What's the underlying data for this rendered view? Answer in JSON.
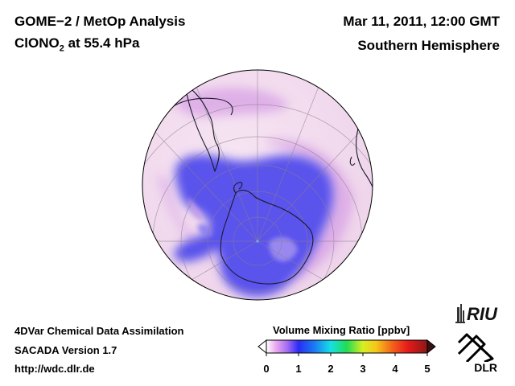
{
  "header": {
    "title_line1": "GOME−2 / MetOp Analysis",
    "species_main": "ClONO",
    "species_sub": "2",
    "species_rest": " at 55.4 hPa",
    "datetime": "Mar 11, 2011, 12:00 GMT",
    "region": "Southern Hemisphere"
  },
  "footer": {
    "line1": "4DVar Chemical Data Assimilation",
    "line2": "SACADA Version 1.7",
    "line3": "http://wdc.dlr.de"
  },
  "colorbar": {
    "title": "Volume Mixing Ratio [ppbv]",
    "ticks": [
      "0",
      "1",
      "2",
      "3",
      "4",
      "5"
    ],
    "colors": [
      "#ffffff",
      "#e9a8ef",
      "#a56cf2",
      "#2a2cf4",
      "#1a7cf4",
      "#16e0e6",
      "#22dc52",
      "#d8ee22",
      "#f4c81a",
      "#f4641a",
      "#e61a1a",
      "#8a1818"
    ]
  },
  "logos": {
    "riu": "RIU",
    "dlr": "DLR"
  },
  "map_colors": {
    "background": "#f3dff0",
    "low": "#5a52ec",
    "mid": "#d9a8e8",
    "coast": "#1a1a2a"
  }
}
